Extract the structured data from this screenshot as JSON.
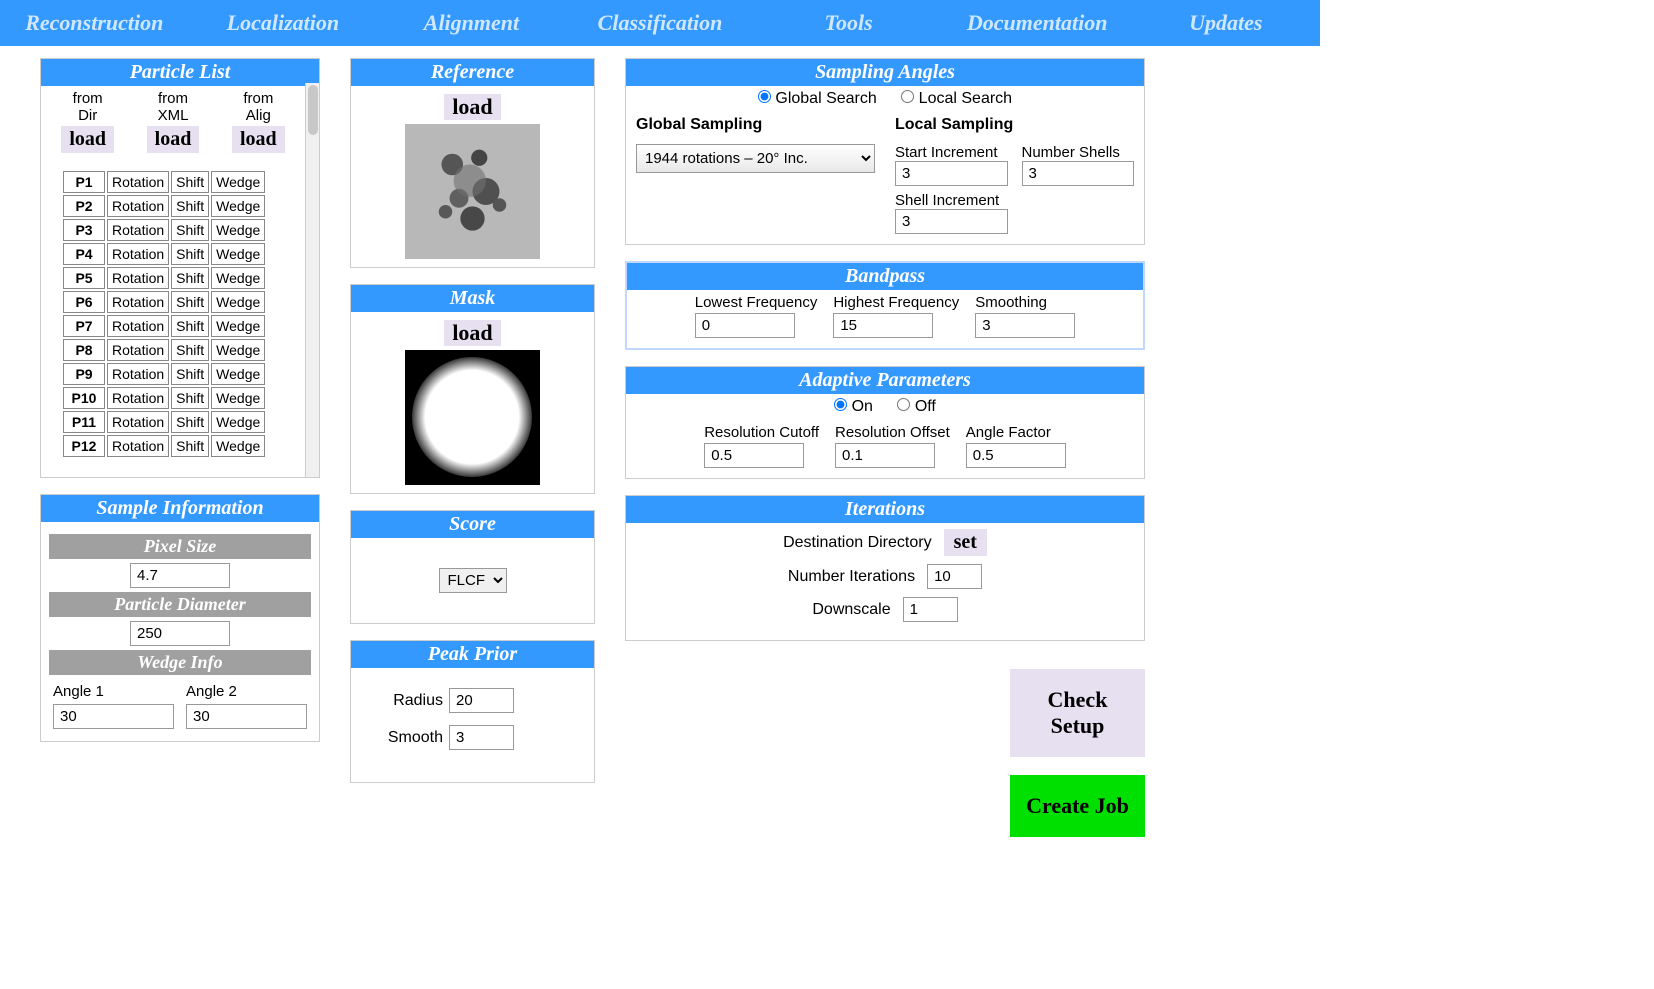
{
  "nav": [
    "Reconstruction",
    "Localization",
    "Alignment",
    "Classification",
    "Tools",
    "Documentation",
    "Updates"
  ],
  "particleList": {
    "title": "Particle List",
    "loads": [
      {
        "label1": "from",
        "label2": "Dir",
        "btn": "load"
      },
      {
        "label1": "from",
        "label2": "XML",
        "btn": "load"
      },
      {
        "label1": "from",
        "label2": "Alig",
        "btn": "load"
      }
    ],
    "cols": [
      "Rotation",
      "Shift",
      "Wedge"
    ],
    "rows": [
      "P1",
      "P2",
      "P3",
      "P4",
      "P5",
      "P6",
      "P7",
      "P8",
      "P9",
      "P10",
      "P11",
      "P12"
    ]
  },
  "sampleInfo": {
    "title": "Sample Information",
    "pixelSize": {
      "label": "Pixel Size",
      "value": "4.7"
    },
    "particleDiameter": {
      "label": "Particle Diameter",
      "value": "250"
    },
    "wedgeInfo": {
      "label": "Wedge Info",
      "angle1Label": "Angle 1",
      "angle1": "30",
      "angle2Label": "Angle 2",
      "angle2": "30"
    }
  },
  "reference": {
    "title": "Reference",
    "load": "load"
  },
  "mask": {
    "title": "Mask",
    "load": "load"
  },
  "score": {
    "title": "Score",
    "value": "FLCF"
  },
  "peakPrior": {
    "title": "Peak Prior",
    "radiusLabel": "Radius",
    "radius": "20",
    "smoothLabel": "Smooth",
    "smooth": "3"
  },
  "samplingAngles": {
    "title": "Sampling Angles",
    "globalLabel": "Global Search",
    "localLabel": "Local Search",
    "globalSamplingLabel": "Global Sampling",
    "globalOption": "1944 rotations – 20° Inc.",
    "localSamplingLabel": "Local Sampling",
    "startIncLabel": "Start Increment",
    "startInc": "3",
    "numShellsLabel": "Number Shells",
    "numShells": "3",
    "shellIncLabel": "Shell Increment",
    "shellInc": "3"
  },
  "bandpass": {
    "title": "Bandpass",
    "lowLabel": "Lowest Frequency",
    "low": "0",
    "highLabel": "Highest Frequency",
    "high": "15",
    "smoothLabel": "Smoothing",
    "smooth": "3"
  },
  "adaptive": {
    "title": "Adaptive Parameters",
    "onLabel": "On",
    "offLabel": "Off",
    "resCutLabel": "Resolution Cutoff",
    "resCut": "0.5",
    "resOffLabel": "Resolution Offset",
    "resOff": "0.1",
    "angFacLabel": "Angle Factor",
    "angFac": "0.5"
  },
  "iterations": {
    "title": "Iterations",
    "destLabel": "Destination Directory",
    "setBtn": "set",
    "numIterLabel": "Number Iterations",
    "numIter": "10",
    "downLabel": "Downscale",
    "down": "1"
  },
  "checkSetup": "Check Setup",
  "createJob": "Create Job",
  "colors": {
    "navBg": "#3399ff",
    "createBg": "#00e000",
    "btnBg": "#e6e0f0"
  }
}
